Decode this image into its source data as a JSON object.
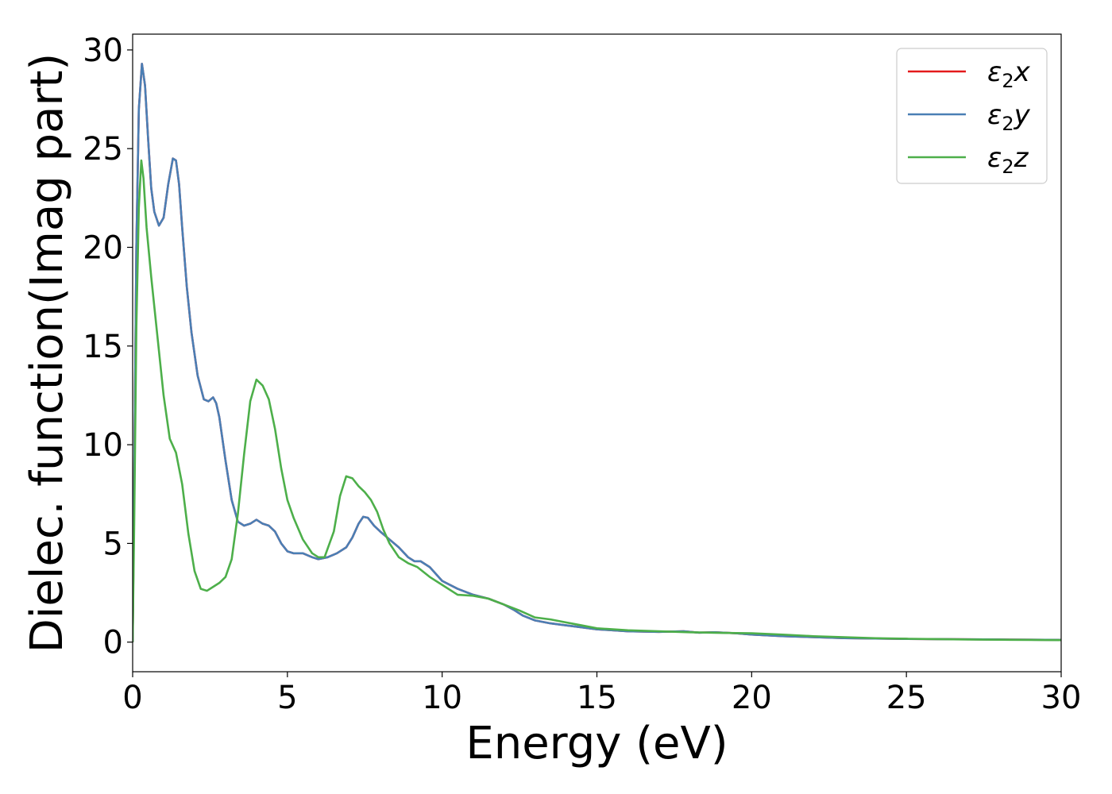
{
  "chart_data": {
    "type": "line",
    "xlabel": "Energy (eV)",
    "ylabel": "Dielec. function(Imag part)",
    "xlim": [
      0,
      30
    ],
    "ylim": [
      -1.5,
      30.8
    ],
    "x_ticks": [
      "0",
      "5",
      "10",
      "15",
      "20",
      "25",
      "30"
    ],
    "y_ticks": [
      "0",
      "5",
      "10",
      "15",
      "20",
      "25",
      "30"
    ],
    "grid": false,
    "legend_position": "top-right",
    "series": [
      {
        "name": "ε₂x",
        "legend": {
          "base": "ε",
          "sub": "2",
          "axis": "x"
        },
        "color": "#e41a1c",
        "x": [
          0,
          0.05,
          0.12,
          0.2,
          0.3,
          0.4,
          0.5,
          0.6,
          0.7,
          0.85,
          1.0,
          1.15,
          1.3,
          1.4,
          1.5,
          1.6,
          1.75,
          1.9,
          2.1,
          2.3,
          2.45,
          2.6,
          2.7,
          2.8,
          3.0,
          3.2,
          3.4,
          3.6,
          3.8,
          4.0,
          4.2,
          4.4,
          4.6,
          4.8,
          5.0,
          5.2,
          5.5,
          5.8,
          6.0,
          6.3,
          6.6,
          6.9,
          7.1,
          7.3,
          7.45,
          7.6,
          7.8,
          8.0,
          8.3,
          8.6,
          8.9,
          9.1,
          9.3,
          9.6,
          10.0,
          10.5,
          11.0,
          11.5,
          12.0,
          12.3,
          12.6,
          13.0,
          13.5,
          14.0,
          14.5,
          15.0,
          16.0,
          17.0,
          17.8,
          18.3,
          18.8,
          19.5,
          20.0,
          21.0,
          22.0,
          23.0,
          24.0,
          25.0,
          26.0,
          27.0,
          28.0,
          29.0,
          30.0
        ],
        "values": [
          0,
          8,
          20,
          27,
          29.3,
          28.2,
          25.5,
          23.0,
          21.8,
          21.1,
          21.5,
          23.2,
          24.5,
          24.4,
          23.2,
          21.0,
          18.0,
          15.7,
          13.5,
          12.3,
          12.2,
          12.4,
          12.1,
          11.4,
          9.2,
          7.2,
          6.1,
          5.9,
          6.0,
          6.2,
          6.0,
          5.9,
          5.6,
          5.0,
          4.6,
          4.5,
          4.5,
          4.3,
          4.2,
          4.3,
          4.5,
          4.8,
          5.3,
          6.0,
          6.35,
          6.3,
          5.9,
          5.6,
          5.2,
          4.8,
          4.3,
          4.1,
          4.1,
          3.8,
          3.1,
          2.7,
          2.4,
          2.2,
          1.9,
          1.65,
          1.35,
          1.1,
          0.95,
          0.85,
          0.75,
          0.65,
          0.55,
          0.52,
          0.55,
          0.48,
          0.5,
          0.45,
          0.38,
          0.3,
          0.25,
          0.2,
          0.18,
          0.16,
          0.15,
          0.14,
          0.13,
          0.12,
          0.11
        ]
      },
      {
        "name": "ε₂y",
        "legend": {
          "base": "ε",
          "sub": "2",
          "axis": "y"
        },
        "color": "#4a7fb5",
        "x": [
          0,
          0.05,
          0.12,
          0.2,
          0.3,
          0.4,
          0.5,
          0.6,
          0.7,
          0.85,
          1.0,
          1.15,
          1.3,
          1.4,
          1.5,
          1.6,
          1.75,
          1.9,
          2.1,
          2.3,
          2.45,
          2.6,
          2.7,
          2.8,
          3.0,
          3.2,
          3.4,
          3.6,
          3.8,
          4.0,
          4.2,
          4.4,
          4.6,
          4.8,
          5.0,
          5.2,
          5.5,
          5.8,
          6.0,
          6.3,
          6.6,
          6.9,
          7.1,
          7.3,
          7.45,
          7.6,
          7.8,
          8.0,
          8.3,
          8.6,
          8.9,
          9.1,
          9.3,
          9.6,
          10.0,
          10.5,
          11.0,
          11.5,
          12.0,
          12.3,
          12.6,
          13.0,
          13.5,
          14.0,
          14.5,
          15.0,
          16.0,
          17.0,
          17.8,
          18.3,
          18.8,
          19.5,
          20.0,
          21.0,
          22.0,
          23.0,
          24.0,
          25.0,
          26.0,
          27.0,
          28.0,
          29.0,
          30.0
        ],
        "values": [
          0,
          8,
          20,
          27,
          29.3,
          28.2,
          25.5,
          23.0,
          21.8,
          21.1,
          21.5,
          23.2,
          24.5,
          24.4,
          23.2,
          21.0,
          18.0,
          15.7,
          13.5,
          12.3,
          12.2,
          12.4,
          12.1,
          11.4,
          9.2,
          7.2,
          6.1,
          5.9,
          6.0,
          6.2,
          6.0,
          5.9,
          5.6,
          5.0,
          4.6,
          4.5,
          4.5,
          4.3,
          4.2,
          4.3,
          4.5,
          4.8,
          5.3,
          6.0,
          6.35,
          6.3,
          5.9,
          5.6,
          5.2,
          4.8,
          4.3,
          4.1,
          4.1,
          3.8,
          3.1,
          2.7,
          2.4,
          2.2,
          1.9,
          1.65,
          1.35,
          1.1,
          0.95,
          0.85,
          0.75,
          0.65,
          0.55,
          0.52,
          0.55,
          0.48,
          0.5,
          0.45,
          0.38,
          0.3,
          0.25,
          0.2,
          0.18,
          0.16,
          0.15,
          0.14,
          0.13,
          0.12,
          0.11
        ]
      },
      {
        "name": "ε₂z",
        "legend": {
          "base": "ε",
          "sub": "2",
          "axis": "z"
        },
        "color": "#4daf4a",
        "x": [
          0,
          0.05,
          0.12,
          0.2,
          0.28,
          0.35,
          0.45,
          0.6,
          0.8,
          1.0,
          1.2,
          1.4,
          1.6,
          1.8,
          2.0,
          2.2,
          2.4,
          2.6,
          2.8,
          3.0,
          3.2,
          3.4,
          3.6,
          3.8,
          4.0,
          4.2,
          4.4,
          4.6,
          4.8,
          5.0,
          5.2,
          5.5,
          5.8,
          6.0,
          6.2,
          6.5,
          6.7,
          6.9,
          7.1,
          7.3,
          7.5,
          7.7,
          7.9,
          8.1,
          8.3,
          8.6,
          8.9,
          9.2,
          9.6,
          10.0,
          10.5,
          11.0,
          11.5,
          12.0,
          12.5,
          13.0,
          13.5,
          14.0,
          14.5,
          15.0,
          16.0,
          17.0,
          18.0,
          19.0,
          20.0,
          21.0,
          22.0,
          23.0,
          24.0,
          25.0,
          26.0,
          27.0,
          28.0,
          29.0,
          30.0
        ],
        "values": [
          0,
          6,
          16,
          22,
          24.4,
          23.5,
          21.0,
          18.5,
          15.5,
          12.5,
          10.3,
          9.6,
          8.0,
          5.5,
          3.6,
          2.7,
          2.6,
          2.8,
          3.0,
          3.3,
          4.2,
          6.5,
          9.5,
          12.2,
          13.3,
          13.0,
          12.3,
          10.8,
          8.8,
          7.2,
          6.3,
          5.2,
          4.5,
          4.3,
          4.3,
          5.6,
          7.4,
          8.4,
          8.3,
          7.9,
          7.6,
          7.2,
          6.6,
          5.7,
          5.0,
          4.3,
          4.0,
          3.8,
          3.3,
          2.9,
          2.4,
          2.35,
          2.2,
          1.9,
          1.6,
          1.25,
          1.15,
          1.0,
          0.85,
          0.7,
          0.6,
          0.55,
          0.5,
          0.47,
          0.45,
          0.38,
          0.3,
          0.25,
          0.2,
          0.17,
          0.15,
          0.13,
          0.12,
          0.11,
          0.1
        ]
      }
    ]
  }
}
